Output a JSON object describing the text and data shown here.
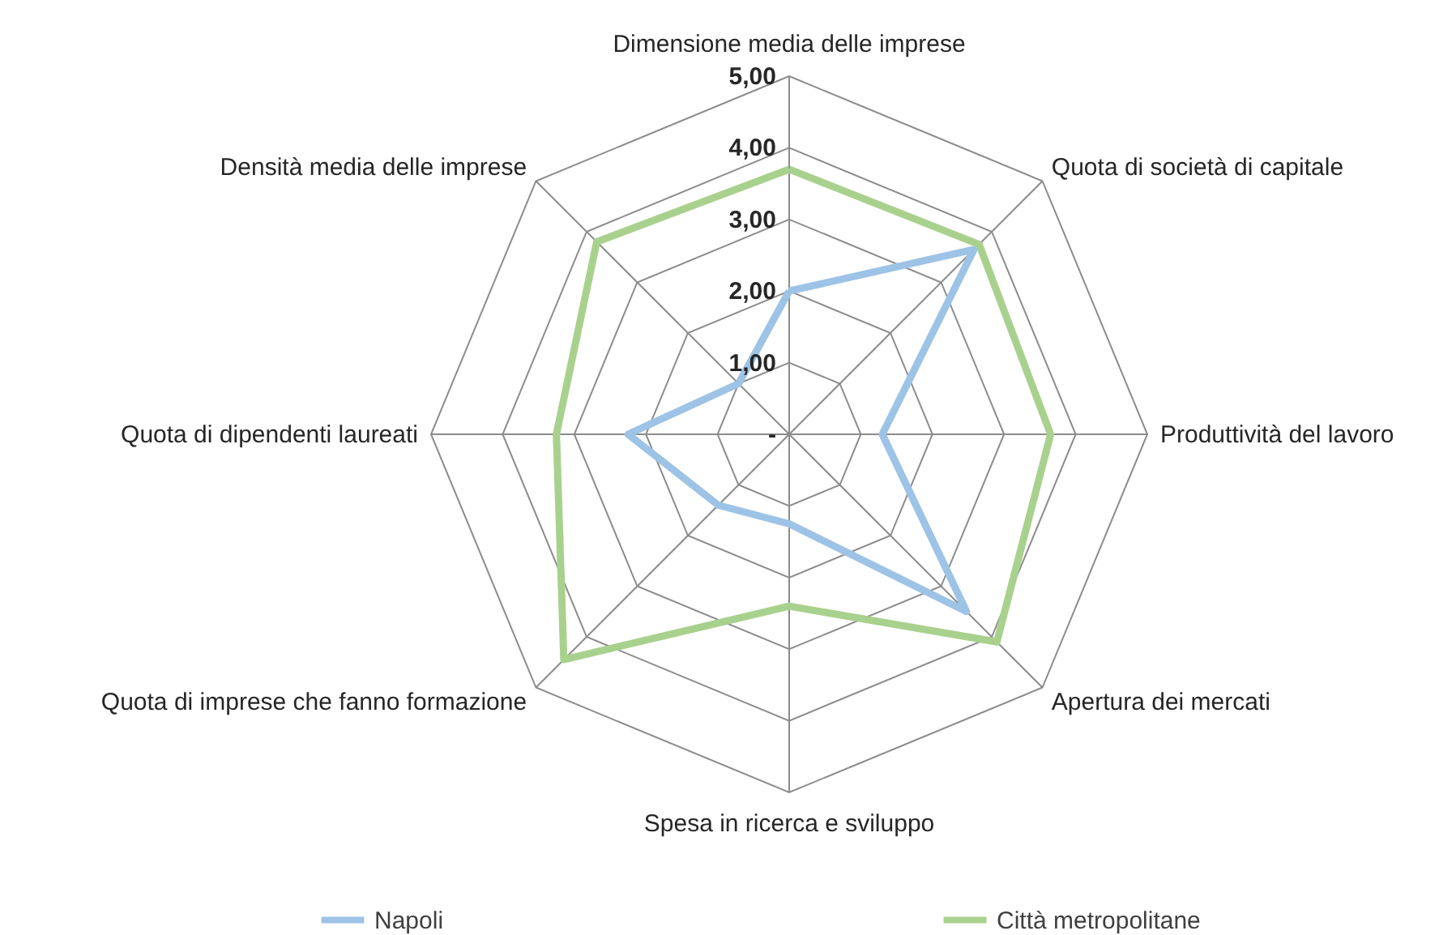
{
  "chart_data": {
    "type": "radar",
    "categories": [
      "Dimensione media delle imprese",
      "Quota di società di capitale",
      "Produttività del lavoro",
      "Apertura dei mercati",
      "Spesa in ricerca e sviluppo",
      "Quota di imprese che fanno formazione",
      "Quota di dipendenti laureati",
      "Densità media delle imprese"
    ],
    "series": [
      {
        "name": "Napoli",
        "color": "#9dc3e6",
        "values": [
          2.0,
          3.65,
          1.3,
          3.5,
          1.25,
          1.4,
          2.25,
          1.0
        ]
      },
      {
        "name": "Città metropolitane",
        "color": "#a9d18e",
        "values": [
          3.7,
          3.75,
          3.65,
          4.1,
          2.4,
          4.45,
          3.25,
          3.8
        ]
      }
    ],
    "ylim": [
      0,
      5
    ],
    "yticks": [
      {
        "value": 0,
        "label": "-"
      },
      {
        "value": 1,
        "label": "1,00"
      },
      {
        "value": 2,
        "label": "2,00"
      },
      {
        "value": 3,
        "label": "3,00"
      },
      {
        "value": 4,
        "label": "4,00"
      },
      {
        "value": 5,
        "label": "5,00"
      }
    ],
    "grid": true,
    "legend": "bottom"
  }
}
